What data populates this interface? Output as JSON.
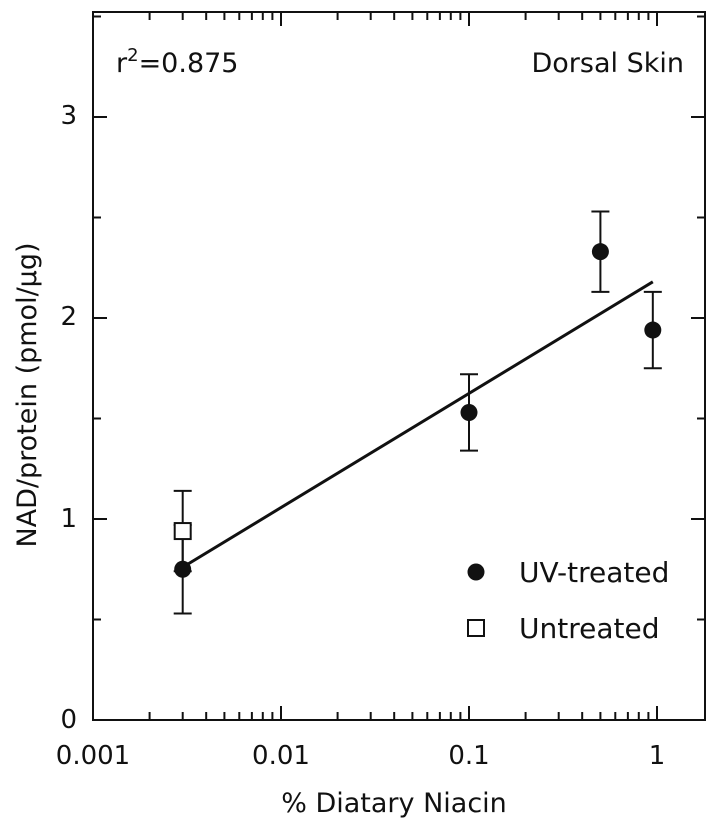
{
  "chart_data": {
    "type": "scatter",
    "title": "",
    "xlabel": "% Diatary Niacin",
    "ylabel": "NAD/protein (pmol/µg)",
    "xscale": "log",
    "xlim": [
      0.001,
      1.4
    ],
    "ylim": [
      0,
      3.5
    ],
    "x_ticks": [
      "0.001",
      "0.01",
      "0.1",
      "1"
    ],
    "y_ticks": [
      "0",
      "1",
      "2",
      "3"
    ],
    "grid": false,
    "annotations": {
      "r2_base": "r",
      "r2_exp": "2",
      "r2_value": "=0.875",
      "panel_label": "Dorsal Skin"
    },
    "legend": {
      "placement": "lower-right",
      "entries": [
        {
          "label": "UV-treated",
          "marker": "filled-circle"
        },
        {
          "label": "Untreated",
          "marker": "open-square"
        }
      ]
    },
    "series": [
      {
        "name": "UV-treated",
        "marker": "filled-circle",
        "points": [
          {
            "x": 0.003,
            "y": 0.75,
            "err": 0.22
          },
          {
            "x": 0.1,
            "y": 1.53,
            "err": 0.19
          },
          {
            "x": 0.5,
            "y": 2.33,
            "err": 0.2
          },
          {
            "x": 0.95,
            "y": 1.94,
            "err": 0.19
          }
        ]
      },
      {
        "name": "Untreated",
        "marker": "open-square",
        "points": [
          {
            "x": 0.003,
            "y": 0.94,
            "err": 0.2
          }
        ]
      }
    ],
    "fit_line": {
      "x": [
        0.003,
        0.95
      ],
      "y": [
        0.76,
        2.18
      ]
    }
  }
}
